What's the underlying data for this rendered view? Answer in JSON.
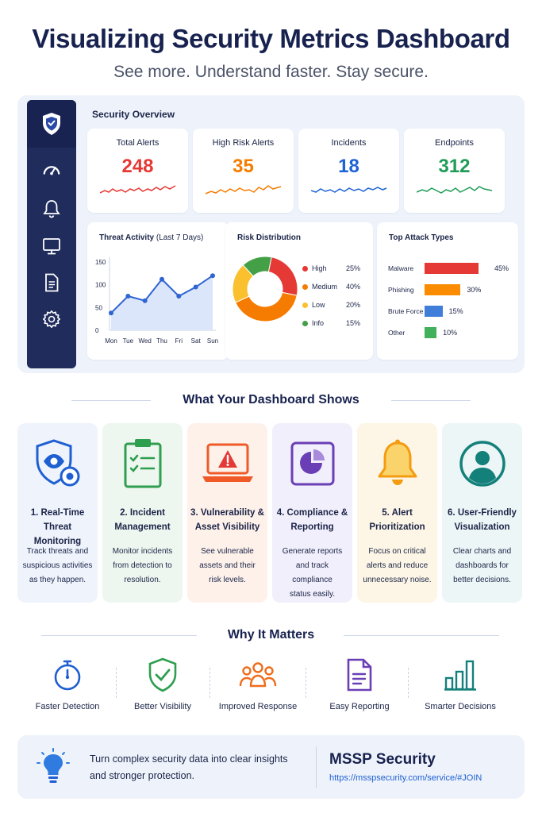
{
  "header": {
    "title": "Visualizing Security Metrics Dashboard",
    "subtitle": "See more. Understand faster. Stay secure."
  },
  "sidebar": {
    "items": [
      {
        "icon": "shield-logo-icon"
      },
      {
        "icon": "gauge-icon"
      },
      {
        "icon": "bell-icon"
      },
      {
        "icon": "monitor-icon"
      },
      {
        "icon": "document-icon"
      },
      {
        "icon": "gear-icon"
      }
    ]
  },
  "overview": {
    "title": "Security Overview",
    "kpis": [
      {
        "label": "Total Alerts",
        "value": "248",
        "color": "#e53935"
      },
      {
        "label": "High Risk Alerts",
        "value": "35",
        "color": "#f57c00"
      },
      {
        "label": "Incidents",
        "value": "18",
        "color": "#1e63d6"
      },
      {
        "label": "Endpoints",
        "value": "312",
        "color": "#1f9d57"
      }
    ]
  },
  "threat_activity": {
    "title": "Threat Activity",
    "title_suffix": "(Last 7 Days)",
    "y_ticks": [
      "150",
      "100",
      "50",
      "0"
    ],
    "x_ticks": [
      "Mon",
      "Tue",
      "Wed",
      "Thu",
      "Fri",
      "Sat",
      "Sun"
    ]
  },
  "risk_distribution": {
    "title": "Risk Distribution",
    "legend": [
      {
        "label": "High",
        "pct": "25%",
        "color": "#e53935"
      },
      {
        "label": "Medium",
        "pct": "40%",
        "color": "#f57c00"
      },
      {
        "label": "Low",
        "pct": "20%",
        "color": "#fbc02d"
      },
      {
        "label": "Info",
        "pct": "15%",
        "color": "#43a047"
      }
    ]
  },
  "attack_types": {
    "title": "Top Attack Types",
    "rows": [
      {
        "label": "Malware",
        "pct": "45%",
        "color": "#e53935"
      },
      {
        "label": "Phishing",
        "pct": "30%",
        "color": "#fb8c00"
      },
      {
        "label": "Brute Force",
        "pct": "15%",
        "color": "#3f7fd9"
      },
      {
        "label": "Other",
        "pct": "10%",
        "color": "#43b05c"
      }
    ]
  },
  "chart_data": [
    {
      "type": "line",
      "title": "Threat Activity",
      "x": [
        "Mon",
        "Tue",
        "Wed",
        "Thu",
        "Fri",
        "Sat",
        "Sun"
      ],
      "series": [
        {
          "values": [
            38,
            75,
            65,
            112,
            75,
            95,
            120
          ]
        }
      ],
      "ylim": [
        0,
        150
      ],
      "yticks": [
        0,
        50,
        100,
        150
      ]
    },
    {
      "type": "pie",
      "title": "Risk Distribution",
      "categories": [
        "High",
        "Medium",
        "Low",
        "Info"
      ],
      "values": [
        25,
        40,
        20,
        15
      ],
      "colors": [
        "#e53935",
        "#f57c00",
        "#fbc02d",
        "#43a047"
      ]
    },
    {
      "type": "bar",
      "title": "Top Attack Types",
      "categories": [
        "Malware",
        "Phishing",
        "Brute Force",
        "Other"
      ],
      "values": [
        45,
        30,
        15,
        10
      ],
      "colors": [
        "#e53935",
        "#fb8c00",
        "#3f7fd9",
        "#43b05c"
      ]
    }
  ],
  "features_section": {
    "title": "What Your Dashboard Shows",
    "items": [
      {
        "icon": "shield-eye-icon",
        "title_1": "1. Real-Time",
        "title_2": "Threat Monitoring",
        "desc_1": "Track threats and",
        "desc_2": "suspicious activities",
        "desc_3": "as they happen.",
        "bg": "#eef3fc"
      },
      {
        "icon": "clipboard-check-icon",
        "title_1": "2. Incident",
        "title_2": "Management",
        "desc_1": "Monitor incidents",
        "desc_2": "from detection to",
        "desc_3": "resolution.",
        "bg": "#eef7ef"
      },
      {
        "icon": "laptop-warning-icon",
        "title_1": "3. Vulnerability &",
        "title_2": "Asset Visibility",
        "desc_1": "See vulnerable",
        "desc_2": "assets and their",
        "desc_3": "risk levels.",
        "bg": "#fdf1ea"
      },
      {
        "icon": "report-pie-icon",
        "title_1": "4. Compliance &",
        "title_2": "Reporting",
        "desc_1": "Generate reports",
        "desc_2": "and track compliance",
        "desc_3": "status easily.",
        "bg": "#f1effb"
      },
      {
        "icon": "alert-bell-icon",
        "title_1": "5. Alert",
        "title_2": "Prioritization",
        "desc_1": "Focus on critical",
        "desc_2": "alerts and reduce",
        "desc_3": "unnecessary noise.",
        "bg": "#fdf6e6"
      },
      {
        "icon": "user-circle-icon",
        "title_1": "6. User-Friendly",
        "title_2": "Visualization",
        "desc_1": "Clear charts and",
        "desc_2": "dashboards for",
        "desc_3": "better decisions.",
        "bg": "#ecf6f7"
      }
    ]
  },
  "why_section": {
    "title": "Why It Matters",
    "items": [
      {
        "icon": "stopwatch-icon",
        "label": "Faster Detection"
      },
      {
        "icon": "shield-check-icon",
        "label": "Better Visibility"
      },
      {
        "icon": "team-icon",
        "label": "Improved Response"
      },
      {
        "icon": "report-icon",
        "label": "Easy Reporting"
      },
      {
        "icon": "bar-chart-icon",
        "label": "Smarter Decisions"
      }
    ]
  },
  "footer": {
    "icon": "lightbulb-icon",
    "text_1": "Turn complex security data into clear insights",
    "text_2": "and stronger protection.",
    "brand": "MSSP Security",
    "link": "https://msspsecurity.com/service/#JOIN"
  }
}
